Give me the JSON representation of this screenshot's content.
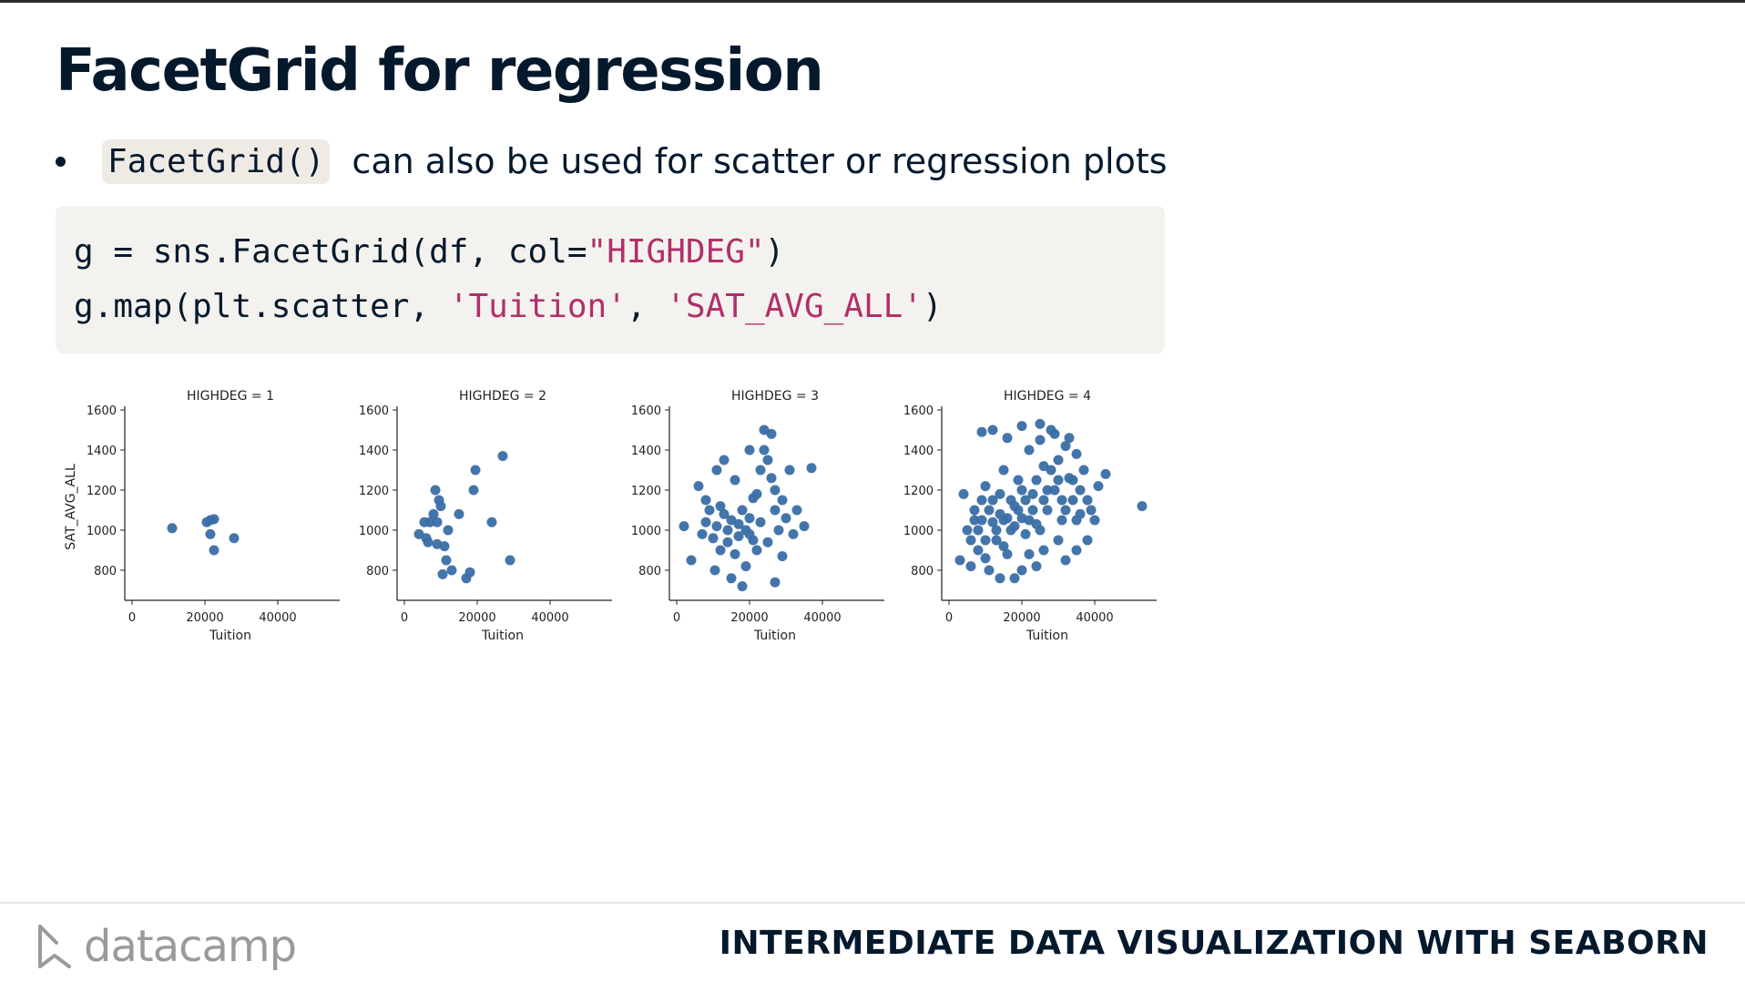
{
  "slide": {
    "title": "FacetGrid for regression",
    "bullet": {
      "code": "FacetGrid()",
      "text": "can also be used for scatter or regression plots"
    },
    "code_lines": [
      [
        {
          "t": "g = sns.FacetGrid(df, col=",
          "c": "plain"
        },
        {
          "t": "\"HIGHDEG\"",
          "c": "str"
        },
        {
          "t": ")",
          "c": "plain"
        }
      ],
      [
        {
          "t": "g.map(plt.scatter, ",
          "c": "plain"
        },
        {
          "t": "'Tuition'",
          "c": "str"
        },
        {
          "t": ", ",
          "c": "plain"
        },
        {
          "t": "'SAT_AVG_ALL'",
          "c": "str"
        },
        {
          "t": ")",
          "c": "plain"
        }
      ]
    ]
  },
  "footer": {
    "logo_text": "datacamp",
    "course": "INTERMEDIATE DATA VISUALIZATION WITH SEABORN"
  },
  "chart_data": {
    "type": "scatter",
    "xlabel": "Tuition",
    "ylabel": "SAT_AVG_ALL",
    "xlim": [
      -2000,
      56000
    ],
    "ylim": [
      650,
      1600
    ],
    "xticks": [
      0,
      20000,
      40000
    ],
    "yticks": [
      800,
      1000,
      1200,
      1400,
      1600
    ],
    "grid": false,
    "point_color": "#3a6ea5",
    "facets": [
      {
        "title": "HIGHDEG = 1",
        "points": [
          [
            11000,
            1010
          ],
          [
            20500,
            1040
          ],
          [
            21500,
            1050
          ],
          [
            22500,
            1055
          ],
          [
            21500,
            980
          ],
          [
            22500,
            900
          ],
          [
            28000,
            960
          ]
        ]
      },
      {
        "title": "HIGHDEG = 2",
        "points": [
          [
            4000,
            980
          ],
          [
            5500,
            1040
          ],
          [
            6000,
            960
          ],
          [
            7000,
            1040
          ],
          [
            8000,
            1080
          ],
          [
            8500,
            1200
          ],
          [
            9000,
            1040
          ],
          [
            9500,
            1150
          ],
          [
            10000,
            1120
          ],
          [
            11000,
            920
          ],
          [
            12000,
            1000
          ],
          [
            11500,
            850
          ],
          [
            10500,
            780
          ],
          [
            13000,
            800
          ],
          [
            17000,
            760
          ],
          [
            18000,
            790
          ],
          [
            19000,
            1200
          ],
          [
            19500,
            1300
          ],
          [
            15000,
            1080
          ],
          [
            24000,
            1040
          ],
          [
            27000,
            1370
          ],
          [
            29000,
            850
          ],
          [
            6500,
            940
          ],
          [
            9000,
            930
          ]
        ]
      },
      {
        "title": "HIGHDEG = 3",
        "points": [
          [
            2000,
            1020
          ],
          [
            4000,
            850
          ],
          [
            6000,
            1220
          ],
          [
            8000,
            1150
          ],
          [
            9000,
            1100
          ],
          [
            10000,
            960
          ],
          [
            11000,
            1020
          ],
          [
            12000,
            900
          ],
          [
            13000,
            1080
          ],
          [
            14000,
            1000
          ],
          [
            15000,
            1050
          ],
          [
            16000,
            1250
          ],
          [
            17000,
            970
          ],
          [
            18000,
            1100
          ],
          [
            19000,
            1000
          ],
          [
            20000,
            1060
          ],
          [
            21000,
            950
          ],
          [
            22000,
            1180
          ],
          [
            23000,
            1300
          ],
          [
            24000,
            1400
          ],
          [
            25000,
            1350
          ],
          [
            26000,
            1480
          ],
          [
            27000,
            1200
          ],
          [
            28000,
            1000
          ],
          [
            29000,
            1150
          ],
          [
            30000,
            1060
          ],
          [
            31000,
            1300
          ],
          [
            32000,
            980
          ],
          [
            33000,
            1100
          ],
          [
            35000,
            1020
          ],
          [
            37000,
            1310
          ],
          [
            10500,
            800
          ],
          [
            15000,
            760
          ],
          [
            18000,
            720
          ],
          [
            27000,
            740
          ],
          [
            11000,
            1300
          ],
          [
            13000,
            1350
          ],
          [
            20000,
            1400
          ],
          [
            24000,
            1500
          ],
          [
            16000,
            880
          ],
          [
            19000,
            820
          ],
          [
            22000,
            900
          ],
          [
            25000,
            940
          ],
          [
            8000,
            1040
          ],
          [
            7000,
            980
          ],
          [
            12000,
            1120
          ],
          [
            21000,
            1160
          ],
          [
            23000,
            1040
          ],
          [
            26000,
            1260
          ],
          [
            29000,
            870
          ],
          [
            14000,
            940
          ],
          [
            17000,
            1030
          ],
          [
            20000,
            980
          ],
          [
            27000,
            1100
          ]
        ]
      },
      {
        "title": "HIGHDEG = 4",
        "points": [
          [
            3000,
            850
          ],
          [
            4000,
            1180
          ],
          [
            5000,
            1000
          ],
          [
            6000,
            950
          ],
          [
            7000,
            1100
          ],
          [
            8000,
            900
          ],
          [
            9000,
            1050
          ],
          [
            10000,
            1220
          ],
          [
            11000,
            800
          ],
          [
            12000,
            1150
          ],
          [
            13000,
            950
          ],
          [
            14000,
            1080
          ],
          [
            15000,
            1300
          ],
          [
            16000,
            880
          ],
          [
            17000,
            1000
          ],
          [
            18000,
            1120
          ],
          [
            19000,
            1250
          ],
          [
            20000,
            1060
          ],
          [
            21000,
            980
          ],
          [
            22000,
            1400
          ],
          [
            23000,
            1180
          ],
          [
            24000,
            1030
          ],
          [
            25000,
            1450
          ],
          [
            26000,
            1320
          ],
          [
            27000,
            1100
          ],
          [
            28000,
            1500
          ],
          [
            29000,
            1200
          ],
          [
            30000,
            1350
          ],
          [
            31000,
            1050
          ],
          [
            32000,
            1420
          ],
          [
            33000,
            1260
          ],
          [
            34000,
            1150
          ],
          [
            35000,
            1380
          ],
          [
            36000,
            1080
          ],
          [
            37000,
            1300
          ],
          [
            38000,
            950
          ],
          [
            39000,
            1100
          ],
          [
            41000,
            1220
          ],
          [
            43000,
            1280
          ],
          [
            53000,
            1120
          ],
          [
            9000,
            1490
          ],
          [
            12000,
            1500
          ],
          [
            16000,
            1460
          ],
          [
            20000,
            1520
          ],
          [
            25000,
            1530
          ],
          [
            29000,
            1480
          ],
          [
            33000,
            1460
          ],
          [
            14000,
            760
          ],
          [
            18000,
            760
          ],
          [
            20000,
            800
          ],
          [
            24000,
            820
          ],
          [
            32000,
            850
          ],
          [
            35000,
            900
          ],
          [
            6000,
            820
          ],
          [
            10000,
            860
          ],
          [
            15000,
            920
          ],
          [
            22000,
            880
          ],
          [
            26000,
            900
          ],
          [
            30000,
            950
          ],
          [
            8000,
            1000
          ],
          [
            12000,
            1040
          ],
          [
            16000,
            1060
          ],
          [
            19000,
            1100
          ],
          [
            21000,
            1150
          ],
          [
            23000,
            1100
          ],
          [
            27000,
            1200
          ],
          [
            31000,
            1150
          ],
          [
            34000,
            1250
          ],
          [
            36000,
            1200
          ],
          [
            40000,
            1050
          ],
          [
            11000,
            1100
          ],
          [
            13000,
            1000
          ],
          [
            17000,
            1150
          ],
          [
            24000,
            1250
          ],
          [
            28000,
            1300
          ],
          [
            30000,
            1250
          ],
          [
            7000,
            1050
          ],
          [
            10000,
            950
          ],
          [
            14000,
            1180
          ],
          [
            18000,
            1020
          ],
          [
            22000,
            1050
          ],
          [
            26000,
            1150
          ],
          [
            32000,
            1100
          ],
          [
            38000,
            1150
          ],
          [
            9000,
            1150
          ],
          [
            15000,
            1050
          ],
          [
            20000,
            1200
          ],
          [
            25000,
            1000
          ],
          [
            35000,
            1050
          ]
        ]
      }
    ]
  }
}
